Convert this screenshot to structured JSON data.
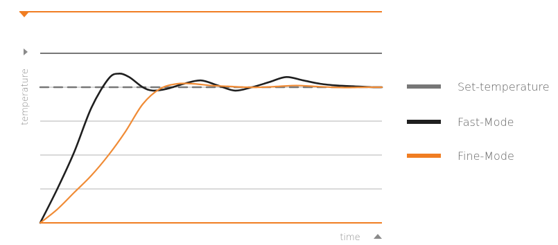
{
  "chart_data": {
    "type": "line",
    "title": "",
    "xlabel": "time",
    "ylabel": "temperature",
    "xlim": [
      0,
      100
    ],
    "ylim": [
      0,
      100
    ],
    "grid": true,
    "grid_y_values": [
      20,
      40,
      60,
      80
    ],
    "top_reference_line": 100,
    "legend_position": "right",
    "series": [
      {
        "name": "Set-temperature",
        "color": "#777777",
        "style": "dashed",
        "x": [
          0,
          100
        ],
        "y": [
          80,
          80
        ]
      },
      {
        "name": "Fast-Mode",
        "color": "#1f1f1f",
        "style": "solid",
        "x": [
          0,
          5,
          10,
          15,
          20,
          23,
          26,
          30,
          33,
          37,
          42,
          47,
          52,
          57,
          62,
          67,
          72,
          77,
          82,
          87,
          92,
          97,
          100
        ],
        "y": [
          0,
          20,
          42,
          68,
          85,
          88,
          86,
          80,
          78,
          79,
          82,
          84,
          81,
          78,
          80,
          83,
          86,
          84,
          82,
          81,
          80.5,
          80,
          80
        ]
      },
      {
        "name": "Fine-Mode",
        "color": "#f08b35",
        "style": "solid",
        "x": [
          0,
          5,
          10,
          15,
          20,
          25,
          30,
          35,
          40,
          45,
          50,
          55,
          60,
          65,
          70,
          75,
          80,
          85,
          90,
          95,
          100
        ],
        "y": [
          0,
          8,
          18,
          28,
          40,
          54,
          70,
          79,
          82,
          82,
          81,
          80.5,
          80,
          80,
          80.5,
          81,
          80.5,
          80,
          79.8,
          80,
          80
        ]
      }
    ]
  },
  "colors": {
    "accent": "#f07d22",
    "grid": "#b3b3b3",
    "setline": "#777777",
    "text": "#8a8a8a"
  }
}
